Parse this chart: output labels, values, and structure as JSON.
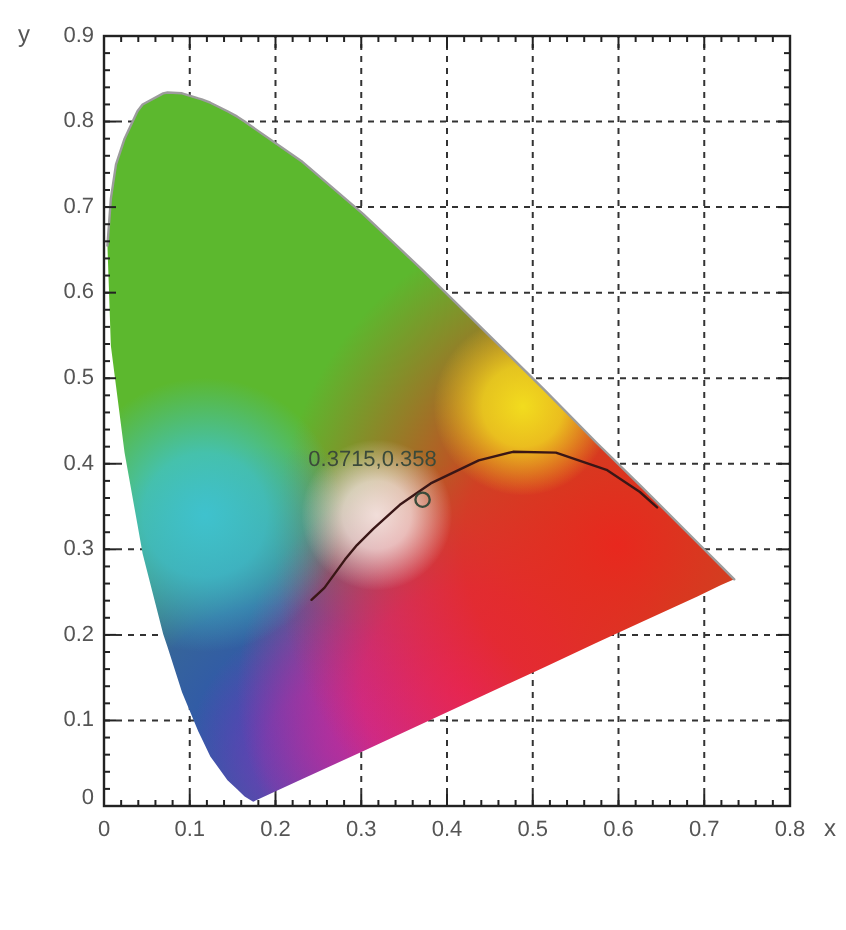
{
  "chart_data": {
    "type": "line",
    "xlabel": "x",
    "ylabel": "y",
    "xlim": [
      0,
      0.8
    ],
    "ylim": [
      0,
      0.9
    ],
    "xticks": [
      0,
      {
        "value": 0.02,
        "label": null
      },
      {
        "value": 0.04,
        "label": null
      },
      {
        "value": 0.06,
        "label": null
      },
      {
        "value": 0.08,
        "label": null
      },
      0.1,
      {
        "value": 0.12,
        "label": null
      },
      {
        "value": 0.14,
        "label": null
      },
      {
        "value": 0.16,
        "label": null
      },
      {
        "value": 0.18,
        "label": null
      },
      0.2,
      {
        "value": 0.22,
        "label": null
      },
      {
        "value": 0.24,
        "label": null
      },
      {
        "value": 0.26,
        "label": null
      },
      {
        "value": 0.28,
        "label": null
      },
      0.3,
      {
        "value": 0.32,
        "label": null
      },
      {
        "value": 0.34,
        "label": null
      },
      {
        "value": 0.36,
        "label": null
      },
      {
        "value": 0.38,
        "label": null
      },
      0.4,
      {
        "value": 0.42,
        "label": null
      },
      {
        "value": 0.44,
        "label": null
      },
      {
        "value": 0.46,
        "label": null
      },
      {
        "value": 0.48,
        "label": null
      },
      0.5,
      {
        "value": 0.52,
        "label": null
      },
      {
        "value": 0.54,
        "label": null
      },
      {
        "value": 0.56,
        "label": null
      },
      {
        "value": 0.58,
        "label": null
      },
      0.6,
      {
        "value": 0.62,
        "label": null
      },
      {
        "value": 0.64,
        "label": null
      },
      {
        "value": 0.66,
        "label": null
      },
      {
        "value": 0.68,
        "label": null
      },
      0.7,
      {
        "value": 0.72,
        "label": null
      },
      {
        "value": 0.74,
        "label": null
      },
      {
        "value": 0.76,
        "label": null
      },
      {
        "value": 0.78,
        "label": null
      },
      0.8
    ],
    "yticks": [
      0,
      {
        "value": 0.02,
        "label": null
      },
      {
        "value": 0.04,
        "label": null
      },
      {
        "value": 0.06,
        "label": null
      },
      {
        "value": 0.08,
        "label": null
      },
      0.1,
      {
        "value": 0.12,
        "label": null
      },
      {
        "value": 0.14,
        "label": null
      },
      {
        "value": 0.16,
        "label": null
      },
      {
        "value": 0.18,
        "label": null
      },
      0.2,
      {
        "value": 0.22,
        "label": null
      },
      {
        "value": 0.24,
        "label": null
      },
      {
        "value": 0.26,
        "label": null
      },
      {
        "value": 0.28,
        "label": null
      },
      0.3,
      {
        "value": 0.32,
        "label": null
      },
      {
        "value": 0.34,
        "label": null
      },
      {
        "value": 0.36,
        "label": null
      },
      {
        "value": 0.38,
        "label": null
      },
      0.4,
      {
        "value": 0.42,
        "label": null
      },
      {
        "value": 0.44,
        "label": null
      },
      {
        "value": 0.46,
        "label": null
      },
      {
        "value": 0.48,
        "label": null
      },
      0.5,
      {
        "value": 0.52,
        "label": null
      },
      {
        "value": 0.54,
        "label": null
      },
      {
        "value": 0.56,
        "label": null
      },
      {
        "value": 0.58,
        "label": null
      },
      0.6,
      {
        "value": 0.62,
        "label": null
      },
      {
        "value": 0.64,
        "label": null
      },
      {
        "value": 0.66,
        "label": null
      },
      {
        "value": 0.68,
        "label": null
      },
      0.7,
      {
        "value": 0.72,
        "label": null
      },
      {
        "value": 0.74,
        "label": null
      },
      {
        "value": 0.76,
        "label": null
      },
      {
        "value": 0.78,
        "label": null
      },
      0.8,
      {
        "value": 0.82,
        "label": null
      },
      {
        "value": 0.84,
        "label": null
      },
      {
        "value": 0.86,
        "label": null
      },
      {
        "value": 0.88,
        "label": null
      },
      0.9
    ],
    "grid": true,
    "series": [
      {
        "x": [
          0.004,
          0.008,
          0.014,
          0.024,
          0.039,
          0.045,
          0.069,
          0.074,
          0.091,
          0.11,
          0.114,
          0.124,
          0.144,
          0.155,
          0.164,
          0.174,
          0.23,
          0.302,
          0.373,
          0.444,
          0.513,
          0.575,
          0.627,
          0.692,
          0.719,
          0.735
        ],
        "values": [
          0.655,
          0.71,
          0.75,
          0.78,
          0.812,
          0.82,
          0.833,
          0.834,
          0.833,
          0.827,
          0.826,
          0.822,
          0.812,
          0.806,
          0.8,
          0.793,
          0.754,
          0.692,
          0.625,
          0.555,
          0.487,
          0.424,
          0.373,
          0.308,
          0.281,
          0.265
        ],
        "upper": [
          0.655,
          0.71,
          0.75,
          0.78,
          0.812,
          0.82,
          0.833,
          0.834,
          0.833,
          0.827,
          0.826,
          0.822,
          0.812,
          0.806,
          0.8,
          0.793,
          0.754,
          0.692,
          0.625,
          0.555,
          0.487,
          0.424,
          0.373,
          0.308,
          0.281,
          0.265
        ],
        "lower": [
          0.655,
          0.538,
          0.491,
          0.413,
          0.329,
          0.295,
          0.201,
          0.186,
          0.133,
          0.087,
          0.079,
          0.058,
          0.03,
          0.02,
          0.011,
          0.005,
          0.031,
          0.064,
          0.097,
          0.13,
          0.162,
          0.191,
          0.215,
          0.245,
          0.258,
          0.265
        ],
        "color": "#9c9c9c"
      },
      {
        "x": [
          0.242,
          0.257,
          0.281,
          0.295,
          0.314,
          0.345,
          0.381,
          0.437,
          0.477,
          0.527,
          0.586,
          0.625,
          0.645
        ],
        "values": [
          0.241,
          0.255,
          0.288,
          0.305,
          0.324,
          0.352,
          0.377,
          0.404,
          0.414,
          0.413,
          0.393,
          0.367,
          0.349
        ],
        "color": "#3a1616"
      },
      {
        "type": "scatter",
        "x": [
          0.3715
        ],
        "values": [
          0.358
        ],
        "color": "#3b4a3a",
        "marker": "circle",
        "value_labels": [
          "0.3715,0.358"
        ]
      }
    ]
  }
}
